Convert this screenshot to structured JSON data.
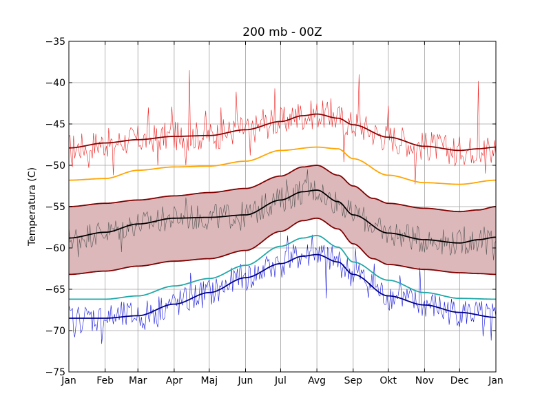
{
  "chart_data": {
    "type": "line",
    "title": "200 mb - 00Z",
    "xlabel": "",
    "ylabel": "Temperatura (C)",
    "xlim": [
      0,
      365
    ],
    "ylim": [
      -75,
      -35
    ],
    "grid": true,
    "x_ticks": [
      {
        "day": 0,
        "label": "Jan"
      },
      {
        "day": 31,
        "label": "Feb"
      },
      {
        "day": 59,
        "label": "Mar"
      },
      {
        "day": 90,
        "label": "Apr"
      },
      {
        "day": 120,
        "label": "Maj"
      },
      {
        "day": 151,
        "label": "Jun"
      },
      {
        "day": 181,
        "label": "Jul"
      },
      {
        "day": 212,
        "label": "Avg"
      },
      {
        "day": 243,
        "label": "Sep"
      },
      {
        "day": 273,
        "label": "Okt"
      },
      {
        "day": 304,
        "label": "Nov"
      },
      {
        "day": 334,
        "label": "Dec"
      },
      {
        "day": 365,
        "label": "Jan"
      }
    ],
    "y_ticks": [
      {
        "value": -35,
        "label": "−35"
      },
      {
        "value": -40,
        "label": "−40"
      },
      {
        "value": -45,
        "label": "−45"
      },
      {
        "value": -50,
        "label": "−50"
      },
      {
        "value": -55,
        "label": "−55"
      },
      {
        "value": -60,
        "label": "−60"
      },
      {
        "value": -65,
        "label": "−65"
      },
      {
        "value": -70,
        "label": "−70"
      },
      {
        "value": -75,
        "label": "−75"
      }
    ],
    "band": {
      "upper_key": [
        [
          0,
          -55
        ],
        [
          31,
          -54.6
        ],
        [
          59,
          -54.2
        ],
        [
          90,
          -53.7
        ],
        [
          120,
          -53.3
        ],
        [
          151,
          -52.8
        ],
        [
          181,
          -51.3
        ],
        [
          200,
          -50.2
        ],
        [
          212,
          -50.0
        ],
        [
          230,
          -51.2
        ],
        [
          243,
          -52.5
        ],
        [
          260,
          -54.0
        ],
        [
          273,
          -54.6
        ],
        [
          304,
          -55.2
        ],
        [
          334,
          -55.6
        ],
        [
          350,
          -55.4
        ],
        [
          365,
          -55.0
        ]
      ],
      "lower_key": [
        [
          0,
          -63.2
        ],
        [
          31,
          -62.8
        ],
        [
          59,
          -62.2
        ],
        [
          90,
          -61.6
        ],
        [
          120,
          -61.3
        ],
        [
          151,
          -60.3
        ],
        [
          181,
          -58.0
        ],
        [
          200,
          -56.7
        ],
        [
          212,
          -56.4
        ],
        [
          230,
          -57.7
        ],
        [
          243,
          -59.5
        ],
        [
          260,
          -61.3
        ],
        [
          273,
          -62.0
        ],
        [
          304,
          -62.6
        ],
        [
          334,
          -63.0
        ],
        [
          350,
          -63.1
        ],
        [
          365,
          -63.2
        ]
      ],
      "fill": "#dcb8ba",
      "edge": "#800000"
    },
    "series": [
      {
        "key": "record_max_smooth",
        "color": "#8b0000",
        "width": 1.8,
        "key_points": [
          [
            0,
            -47.9
          ],
          [
            31,
            -47.3
          ],
          [
            59,
            -46.9
          ],
          [
            90,
            -46.5
          ],
          [
            120,
            -46.4
          ],
          [
            151,
            -45.7
          ],
          [
            181,
            -44.7
          ],
          [
            200,
            -44.0
          ],
          [
            212,
            -43.8
          ],
          [
            230,
            -44.3
          ],
          [
            243,
            -45.1
          ],
          [
            273,
            -46.6
          ],
          [
            304,
            -47.7
          ],
          [
            334,
            -48.2
          ],
          [
            350,
            -48.0
          ],
          [
            365,
            -47.8
          ]
        ]
      },
      {
        "key": "p_high",
        "color": "#ffa500",
        "width": 1.8,
        "key_points": [
          [
            0,
            -51.8
          ],
          [
            31,
            -51.6
          ],
          [
            59,
            -50.6
          ],
          [
            90,
            -50.2
          ],
          [
            120,
            -50.1
          ],
          [
            151,
            -49.5
          ],
          [
            181,
            -48.2
          ],
          [
            212,
            -47.8
          ],
          [
            230,
            -48.0
          ],
          [
            243,
            -49.2
          ],
          [
            273,
            -51.2
          ],
          [
            304,
            -52.1
          ],
          [
            334,
            -52.3
          ],
          [
            365,
            -51.8
          ]
        ]
      },
      {
        "key": "mean",
        "color": "#000000",
        "width": 1.8,
        "key_points": [
          [
            0,
            -58.8
          ],
          [
            31,
            -58.1
          ],
          [
            59,
            -57.1
          ],
          [
            90,
            -56.4
          ],
          [
            120,
            -56.3
          ],
          [
            151,
            -56.0
          ],
          [
            181,
            -54.2
          ],
          [
            200,
            -53.2
          ],
          [
            212,
            -53.0
          ],
          [
            230,
            -54.4
          ],
          [
            243,
            -56.0
          ],
          [
            273,
            -58.2
          ],
          [
            304,
            -59.0
          ],
          [
            334,
            -59.4
          ],
          [
            350,
            -59.0
          ],
          [
            365,
            -58.7
          ]
        ]
      },
      {
        "key": "p_low",
        "color": "#20a8a8",
        "width": 1.8,
        "key_points": [
          [
            0,
            -66.2
          ],
          [
            31,
            -66.2
          ],
          [
            59,
            -65.8
          ],
          [
            90,
            -64.6
          ],
          [
            120,
            -63.7
          ],
          [
            151,
            -62.1
          ],
          [
            181,
            -59.8
          ],
          [
            200,
            -58.8
          ],
          [
            212,
            -58.5
          ],
          [
            230,
            -59.9
          ],
          [
            243,
            -61.7
          ],
          [
            273,
            -63.9
          ],
          [
            304,
            -65.4
          ],
          [
            334,
            -66.1
          ],
          [
            365,
            -66.2
          ]
        ]
      },
      {
        "key": "record_min_smooth",
        "color": "#00008b",
        "width": 1.8,
        "key_points": [
          [
            0,
            -68.5
          ],
          [
            31,
            -68.5
          ],
          [
            59,
            -68.2
          ],
          [
            90,
            -66.8
          ],
          [
            120,
            -65.4
          ],
          [
            151,
            -63.6
          ],
          [
            181,
            -61.9
          ],
          [
            200,
            -61.0
          ],
          [
            212,
            -60.8
          ],
          [
            230,
            -61.7
          ],
          [
            243,
            -63.2
          ],
          [
            273,
            -65.8
          ],
          [
            304,
            -66.9
          ],
          [
            334,
            -67.8
          ],
          [
            365,
            -68.4
          ]
        ]
      }
    ],
    "noisy_series": [
      {
        "key": "daily_max",
        "color": "#ee2020",
        "width": 0.6,
        "follows": "record_max_smooth",
        "amplitude": 1.8,
        "spikes": [
          [
            3,
            -50.2
          ],
          [
            17,
            -50.3
          ],
          [
            38,
            -51.2
          ],
          [
            51,
            -47.0
          ],
          [
            68,
            -43.0
          ],
          [
            76,
            -50.0
          ],
          [
            88,
            -42.9
          ],
          [
            95,
            -47.5
          ],
          [
            100,
            -50.0
          ],
          [
            103,
            -38.5
          ],
          [
            117,
            -43.4
          ],
          [
            130,
            -43.0
          ],
          [
            143,
            -41.1
          ],
          [
            155,
            -48.8
          ],
          [
            166,
            -43.2
          ],
          [
            176,
            -40.7
          ],
          [
            196,
            -42.6
          ],
          [
            224,
            -41.9
          ],
          [
            235,
            -49.6
          ],
          [
            248,
            -39.0
          ],
          [
            273,
            -42.8
          ],
          [
            281,
            -48.6
          ],
          [
            296,
            -52.3
          ],
          [
            310,
            -46.0
          ],
          [
            330,
            -50.1
          ],
          [
            336,
            -48.8
          ],
          [
            350,
            -39.8
          ],
          [
            356,
            -51.0
          ],
          [
            361,
            -49.7
          ]
        ]
      },
      {
        "key": "daily_mean",
        "color": "#555555",
        "width": 0.6,
        "follows": "mean",
        "amplitude": 1.6,
        "spikes": [
          [
            8,
            -61.1
          ],
          [
            22,
            -58.3
          ],
          [
            45,
            -60.5
          ],
          [
            70,
            -56.1
          ],
          [
            100,
            -53.9
          ],
          [
            125,
            -54.7
          ],
          [
            147,
            -57.9
          ],
          [
            168,
            -53.4
          ],
          [
            186,
            -51.7
          ],
          [
            204,
            -50.5
          ],
          [
            220,
            -54.8
          ],
          [
            247,
            -56.3
          ],
          [
            268,
            -58.9
          ],
          [
            290,
            -57.2
          ],
          [
            316,
            -60.1
          ],
          [
            338,
            -57.4
          ],
          [
            357,
            -60.8
          ],
          [
            363,
            -61.5
          ]
        ]
      },
      {
        "key": "daily_min",
        "color": "#1010dd",
        "width": 0.6,
        "follows": "record_min_smooth",
        "amplitude": 1.8,
        "spikes": [
          [
            5,
            -70.8
          ],
          [
            18,
            -68.1
          ],
          [
            28,
            -71.6
          ],
          [
            40,
            -68.9
          ],
          [
            45,
            -66.5
          ],
          [
            65,
            -69.9
          ],
          [
            76,
            -69.6
          ],
          [
            104,
            -63.0
          ],
          [
            112,
            -64.7
          ],
          [
            145,
            -64.5
          ],
          [
            170,
            -61.6
          ],
          [
            187,
            -58.5
          ],
          [
            208,
            -58.4
          ],
          [
            214,
            -59.8
          ],
          [
            220,
            -66.1
          ],
          [
            245,
            -60.1
          ],
          [
            261,
            -61.9
          ],
          [
            283,
            -63.3
          ],
          [
            300,
            -62.4
          ],
          [
            320,
            -68.6
          ],
          [
            343,
            -67.4
          ],
          [
            354,
            -70.7
          ],
          [
            361,
            -71.2
          ]
        ]
      }
    ]
  }
}
